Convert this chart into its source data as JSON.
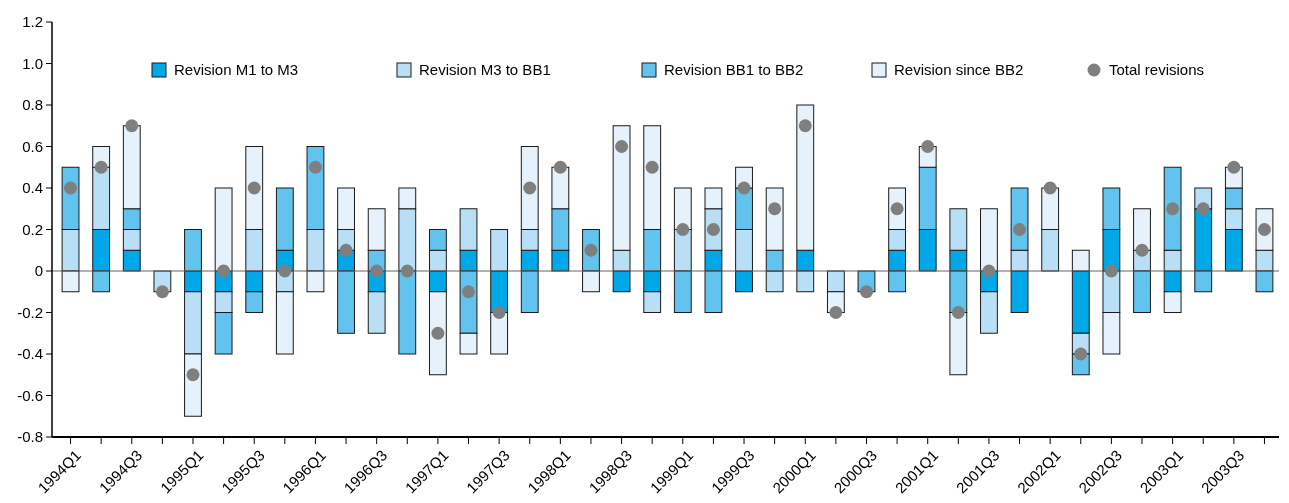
{
  "chart_data": {
    "type": "bar",
    "stacked": true,
    "categories": [
      "1994Q1",
      null,
      "1994Q3",
      null,
      "1995Q1",
      null,
      "1995Q3",
      null,
      "1996Q1",
      null,
      "1996Q3",
      null,
      "1997Q1",
      null,
      "1997Q3",
      null,
      "1998Q1",
      null,
      "1998Q3",
      null,
      "1999Q1",
      null,
      "1999Q3",
      null,
      "2000Q1",
      null,
      "2000Q3",
      null,
      "2001Q1",
      null,
      "2001Q3",
      null,
      "2002Q1",
      null,
      "2002Q3",
      null,
      "2003Q1",
      null,
      "2003Q3",
      null
    ],
    "series": [
      {
        "name": "Revision M1 to M3",
        "color": "#00a8e8",
        "values": [
          0,
          0.2,
          0.1,
          0,
          -0.1,
          -0.1,
          -0.1,
          0.1,
          0,
          0.1,
          -0.1,
          0,
          -0.1,
          0.1,
          -0.2,
          0.1,
          0.1,
          0,
          -0.1,
          -0.1,
          0,
          0.1,
          -0.1,
          0,
          0.1,
          0,
          0,
          0.1,
          0.2,
          0.1,
          -0.1,
          -0.2,
          0,
          -0.3,
          0.2,
          0,
          -0.1,
          0.3,
          0.2,
          0
        ]
      },
      {
        "name": "Revision M3 to BB1",
        "color": "#b8dff5",
        "values": [
          0.2,
          0.3,
          0.1,
          -0.1,
          -0.3,
          -0.1,
          0.2,
          -0.1,
          0.2,
          0.1,
          -0.2,
          0.3,
          0.1,
          0.2,
          0.2,
          0.1,
          0,
          0,
          0.1,
          -0.1,
          0.2,
          0.2,
          0.2,
          -0.1,
          -0.1,
          -0.1,
          0,
          0.1,
          0,
          0.2,
          -0.2,
          0.1,
          0.2,
          -0.1,
          -0.2,
          0.1,
          0.1,
          0.1,
          0.1,
          0.1
        ]
      },
      {
        "name": "Revision BB1 to BB2",
        "color": "#63c3ef",
        "values": [
          0.3,
          -0.1,
          0.1,
          0,
          0.2,
          -0.2,
          -0.1,
          0.3,
          0.4,
          -0.3,
          0.1,
          -0.4,
          0.1,
          -0.3,
          0,
          -0.2,
          0.2,
          0.2,
          0,
          0.2,
          -0.2,
          -0.2,
          0.2,
          0.1,
          0,
          0,
          -0.1,
          -0.1,
          0.3,
          -0.2,
          0,
          0.3,
          0,
          -0.1,
          0.2,
          -0.2,
          0.4,
          -0.1,
          0.1,
          -0.1
        ]
      },
      {
        "name": "Revision since BB2",
        "color": "#e6f2fb",
        "values": [
          -0.1,
          0.1,
          0.4,
          0,
          -0.3,
          0.4,
          0.4,
          -0.3,
          -0.1,
          0.2,
          0.2,
          0.1,
          -0.4,
          -0.1,
          -0.2,
          0.4,
          0.2,
          -0.1,
          0.6,
          0.5,
          0.2,
          0.1,
          0.1,
          0.3,
          0.7,
          -0.1,
          0,
          0.2,
          0.1,
          -0.3,
          0.3,
          0,
          0.2,
          0.1,
          -0.2,
          0.2,
          -0.1,
          0,
          0.1,
          0.2
        ]
      },
      {
        "name": "Total revisions",
        "type": "scatter",
        "marker": "circle",
        "color": "#7f7f7f",
        "values": [
          0.4,
          0.5,
          0.7,
          -0.1,
          -0.5,
          0,
          0.4,
          0,
          0.5,
          0.1,
          0,
          0,
          -0.3,
          -0.1,
          -0.2,
          0.4,
          0.5,
          0.1,
          0.6,
          0.5,
          0.2,
          0.2,
          0.4,
          0.3,
          0.7,
          -0.2,
          -0.1,
          0.3,
          0.6,
          -0.2,
          0,
          0.2,
          0.4,
          -0.4,
          0,
          0.1,
          0.3,
          0.3,
          0.5,
          0.2
        ]
      }
    ],
    "ylim": [
      -0.8,
      1.2
    ],
    "yticks": [
      -0.8,
      -0.6,
      -0.4,
      -0.2,
      0,
      0.2,
      0.4,
      0.6,
      0.8,
      {
        "value": 1,
        "label": "1.0"
      },
      1.2
    ],
    "ref_lines": [
      {
        "axis": "y",
        "value": 0,
        "color": "#666666"
      }
    ],
    "legend": "top"
  }
}
